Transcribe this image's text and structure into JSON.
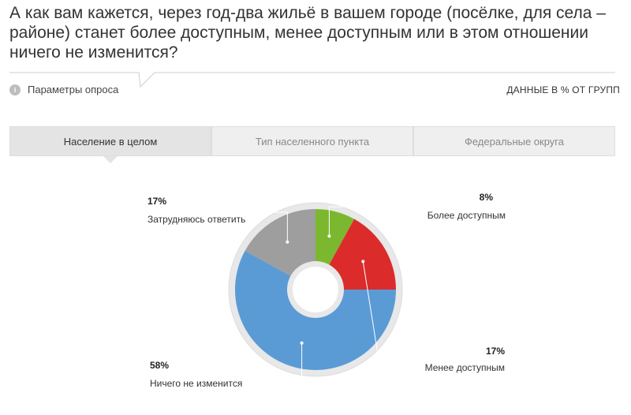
{
  "question": "А как вам кажется, через год-два жильё в вашем городе (посёлке, для села – районе) станет более доступным, менее доступным или в этом отношении ничего не изменится?",
  "params_label": "Параметры опроса",
  "data_note": "ДАННЫЕ В % ОТ ГРУПП",
  "tabs": [
    {
      "label": "Население в целом",
      "active": true
    },
    {
      "label": "Тип населенного пункта",
      "active": false
    },
    {
      "label": "Федеральные округа",
      "active": false
    }
  ],
  "chart_data": {
    "type": "pie",
    "series": [
      {
        "name": "Более доступным",
        "value": 8,
        "label": "8%",
        "color": "#7cb82f"
      },
      {
        "name": "Менее доступным",
        "value": 17,
        "label": "17%",
        "color": "#dc2b2b"
      },
      {
        "name": "Ничего не изменится",
        "value": 58,
        "label": "58%",
        "color": "#5b9bd5"
      },
      {
        "name": "Затрудняюсь ответить",
        "value": 17,
        "label": "17%",
        "color": "#9e9e9e"
      }
    ]
  }
}
